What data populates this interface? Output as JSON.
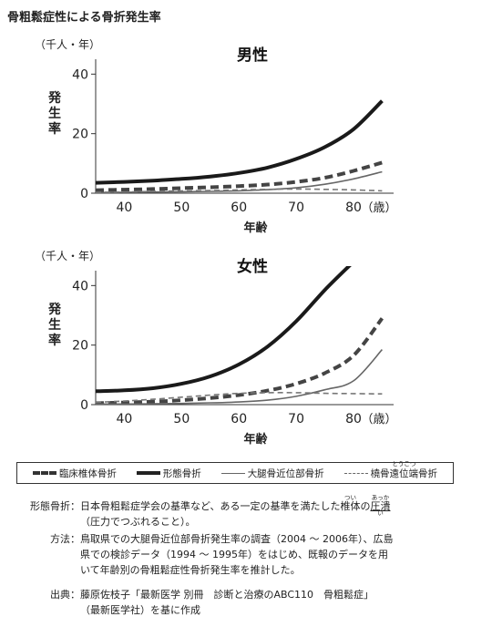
{
  "title": "骨粗鬆症性による骨折発生率",
  "chart_data": [
    {
      "type": "line",
      "title": "男性",
      "ylabel": "発生率",
      "yunit": "（千人・年）",
      "xunit": "（歳）",
      "xlabel": "年齢",
      "x": [
        35,
        40,
        45,
        50,
        55,
        60,
        65,
        70,
        75,
        80,
        85
      ],
      "xlim": [
        35,
        87
      ],
      "ylim": [
        0,
        45
      ],
      "xticks": [
        40,
        50,
        60,
        70,
        80
      ],
      "yticks": [
        0,
        20,
        40
      ],
      "grid": false,
      "series": [
        {
          "name": "臨床椎体骨折",
          "values": [
            1.0,
            1.2,
            1.4,
            1.7,
            2.0,
            2.4,
            2.9,
            3.8,
            5.2,
            7.5,
            10.3
          ]
        },
        {
          "name": "形態骨折",
          "values": [
            3.5,
            3.8,
            4.2,
            4.8,
            5.6,
            6.8,
            8.6,
            11.5,
            15.5,
            21.5,
            31.0
          ]
        },
        {
          "name": "大腿骨近位部骨折",
          "values": [
            0.2,
            0.3,
            0.4,
            0.5,
            0.6,
            0.8,
            1.2,
            1.8,
            3.0,
            4.8,
            7.2
          ]
        },
        {
          "name": "橈骨遠位端骨折",
          "values": [
            0.3,
            0.4,
            0.6,
            0.8,
            0.9,
            1.1,
            1.3,
            1.4,
            1.3,
            1.1,
            0.8
          ]
        }
      ]
    },
    {
      "type": "line",
      "title": "女性",
      "ylabel": "発生率",
      "yunit": "（千人・年）",
      "xunit": "（歳）",
      "xlabel": "年齢",
      "x": [
        35,
        40,
        45,
        50,
        55,
        60,
        65,
        70,
        75,
        80,
        85
      ],
      "xlim": [
        35,
        87
      ],
      "ylim": [
        0,
        45
      ],
      "xticks": [
        40,
        50,
        60,
        70,
        80
      ],
      "yticks": [
        0,
        20,
        40
      ],
      "grid": false,
      "series": [
        {
          "name": "臨床椎体骨折",
          "values": [
            0.5,
            0.7,
            1.0,
            1.5,
            2.2,
            3.2,
            4.7,
            7.0,
            10.6,
            16.5,
            29.0
          ]
        },
        {
          "name": "形態骨折",
          "values": [
            4.5,
            4.8,
            5.5,
            7.0,
            9.5,
            13.5,
            19.5,
            28.0,
            38.5,
            48.0,
            null
          ]
        },
        {
          "name": "大腿骨近位部骨折",
          "values": [
            0.2,
            0.2,
            0.3,
            0.4,
            0.6,
            0.9,
            1.5,
            2.8,
            5.0,
            8.0,
            18.5
          ]
        },
        {
          "name": "橈骨遠位端骨折",
          "values": [
            0.8,
            1.2,
            1.8,
            2.5,
            3.2,
            3.8,
            4.0,
            4.0,
            3.8,
            3.7,
            3.6
          ]
        }
      ]
    }
  ],
  "legend": [
    {
      "label": "臨床椎体骨折",
      "style": "thick-dash"
    },
    {
      "label": "形態骨折",
      "style": "thick-solid"
    },
    {
      "label": "大腿骨近位部骨折",
      "style": "thin-solid"
    },
    {
      "label": "橈骨遠位端骨折",
      "style": "thin-dash",
      "ruby": "とうこつ"
    }
  ],
  "notes": {
    "morph": {
      "label": "形態骨折：",
      "line1_a": "日本骨粗鬆症学会の基準など、ある一定の基準を満たした",
      "line1_b": "椎体",
      "line1_b_ruby": "つい",
      "line1_c": "の",
      "line1_d": "圧潰",
      "line1_d_ruby": "あっかい",
      "line2": "（圧力でつぶれること）。"
    },
    "method": {
      "label": "方法：",
      "line1": "鳥取県での大腿骨近位部骨折発生率の調査（2004 ～ 2006年）、広島",
      "line2": "県での検診データ（1994 ～ 1995年）をはじめ、既報のデータを用",
      "line3": "いて年齢別の骨粗鬆症性骨折発生率を推計した。"
    },
    "source": {
      "label": "出典：",
      "line1": "藤原佐枝子「最新医学 別冊　診断と治療のABC110　骨粗鬆症」",
      "line2": "（最新医学社）を基に作成"
    }
  }
}
